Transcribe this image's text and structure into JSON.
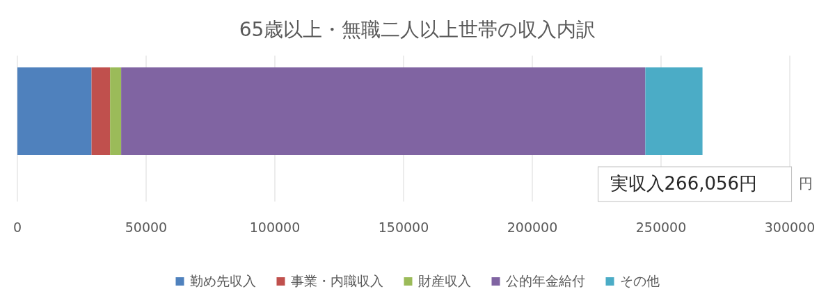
{
  "chart_data": {
    "type": "bar",
    "orientation": "horizontal",
    "stacked": true,
    "title": "65歳以上・無職二人以上世帯の収入内訳",
    "xlabel": "円",
    "categories": [
      null
    ],
    "series": [
      {
        "name": "勤め先収入",
        "color": "#4f81bd",
        "values": [
          28800
        ]
      },
      {
        "name": "事業・内職収入",
        "color": "#c0504d",
        "values": [
          7200
        ]
      },
      {
        "name": "財産収入",
        "color": "#9bbb59",
        "values": [
          4300
        ]
      },
      {
        "name": "公的年金給付",
        "color": "#8064a2",
        "values": [
          203600
        ]
      },
      {
        "name": "その他",
        "color": "#4bacc6",
        "values": [
          22200
        ]
      }
    ],
    "xlim": [
      0,
      300000
    ],
    "xticks": [
      0,
      50000,
      100000,
      150000,
      200000,
      250000,
      300000
    ],
    "grid": "x",
    "legend": "bottom",
    "annotations": [
      "実収入266,056円"
    ]
  }
}
